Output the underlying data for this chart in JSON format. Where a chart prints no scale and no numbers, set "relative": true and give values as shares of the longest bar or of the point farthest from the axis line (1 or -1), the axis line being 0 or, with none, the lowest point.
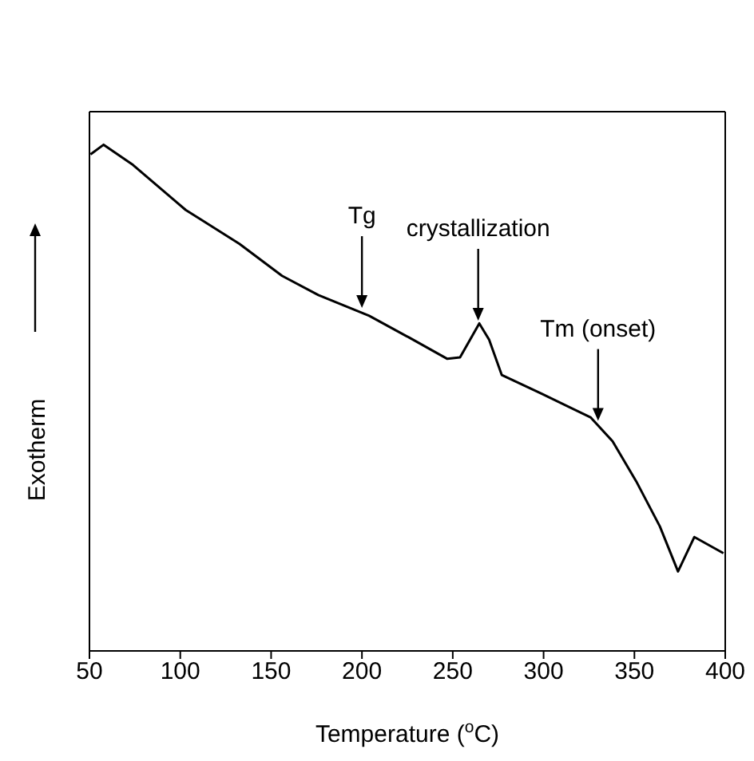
{
  "chart_data": {
    "type": "line",
    "xlabel": "Temperature ($^{o}$C)",
    "ylabel": "Exotherm",
    "relative": true,
    "x": [
      50.6,
      57.8,
      74,
      103,
      132.6,
      156,
      176,
      204,
      226,
      247,
      254,
      264.6,
      270,
      277,
      299,
      326,
      338,
      351,
      364,
      374,
      383,
      399
    ],
    "series": [
      {
        "color": "#000000",
        "values": [
          0.981,
          1,
          0.96,
          0.871,
          0.804,
          0.741,
          0.703,
          0.662,
          0.619,
          0.577,
          0.58,
          0.647,
          0.615,
          0.545,
          0.508,
          0.461,
          0.414,
          0.335,
          0.246,
          0.157,
          0.225,
          0.193
        ]
      }
    ],
    "xlim": [
      50,
      400
    ],
    "xticks": [
      50,
      100,
      150,
      200,
      250,
      300,
      350,
      400
    ],
    "annotations": [
      {
        "text": "Tg",
        "x": 200,
        "y": 0.668
      },
      {
        "text": "crystallization",
        "x": 264,
        "y": 0.643
      },
      {
        "text": "Tm (onset)",
        "x": 330,
        "y": 0.445
      }
    ],
    "marker": "none",
    "line_style": "solid"
  }
}
